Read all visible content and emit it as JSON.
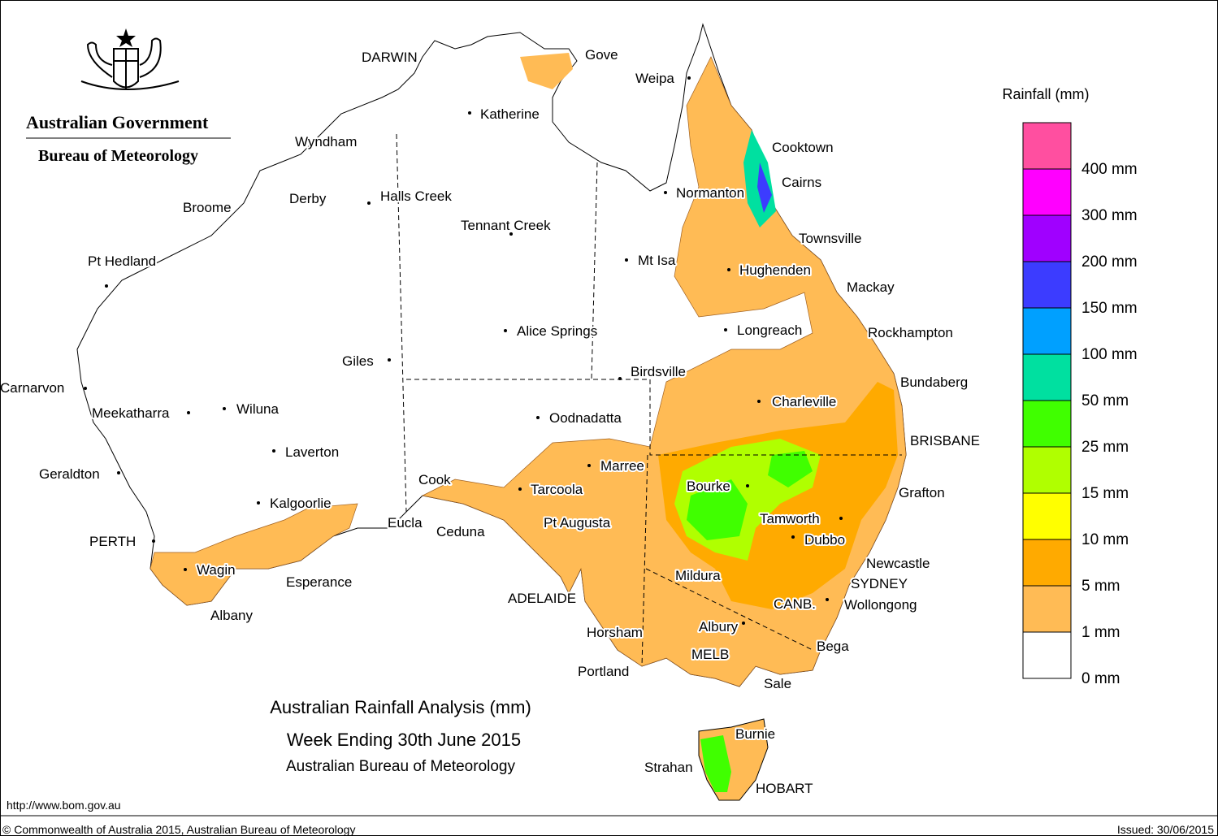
{
  "header": {
    "government": "Australian Government",
    "bureau": "Bureau of Meteorology"
  },
  "title": {
    "line1": "Australian Rainfall Analysis (mm)",
    "line2": "Week Ending 30th June 2015",
    "line3": "Australian Bureau of Meteorology"
  },
  "legend": {
    "title": "Rainfall (mm)",
    "items": [
      {
        "label": "400 mm",
        "color": "#ff4fa0"
      },
      {
        "label": "300 mm",
        "color": "#ff00ff"
      },
      {
        "label": "200 mm",
        "color": "#a000ff"
      },
      {
        "label": "150 mm",
        "color": "#3c3cff"
      },
      {
        "label": "100 mm",
        "color": "#00a0ff"
      },
      {
        "label": "50 mm",
        "color": "#00e0a0"
      },
      {
        "label": "25 mm",
        "color": "#40ff00"
      },
      {
        "label": "15 mm",
        "color": "#b0ff00"
      },
      {
        "label": "10 mm",
        "color": "#ffff00"
      },
      {
        "label": "5 mm",
        "color": "#ffaa00"
      },
      {
        "label": "1 mm",
        "color": "#ffbb55"
      },
      {
        "label": "0 mm",
        "color": "#ffffff"
      }
    ]
  },
  "places": [
    "DARWIN",
    "Gove",
    "Weipa",
    "Katherine",
    "Wyndham",
    "Cooktown",
    "Cairns",
    "Normanton",
    "Derby",
    "Halls Creek",
    "Broome",
    "Tennant Creek",
    "Townsville",
    "Pt Hedland",
    "Mt Isa",
    "Hughenden",
    "Mackay",
    "Alice Springs",
    "Longreach",
    "Rockhampton",
    "Giles",
    "Birdsville",
    "Bundaberg",
    "Carnarvon",
    "Charleville",
    "Meekatharra",
    "Wiluna",
    "Oodnadatta",
    "BRISBANE",
    "Laverton",
    "Marree",
    "Geraldton",
    "Cook",
    "Bourke",
    "Tarcoola",
    "Grafton",
    "Kalgoorlie",
    "Tamworth",
    "Pt Augusta",
    "Eucla",
    "Ceduna",
    "Dubbo",
    "PERTH",
    "Newcastle",
    "Wagin",
    "Mildura",
    "Esperance",
    "SYDNEY",
    "ADELAIDE",
    "CANB.",
    "Wollongong",
    "Albany",
    "Albury",
    "Horsham",
    "Bega",
    "MELB",
    "Portland",
    "Sale",
    "Burnie",
    "Strahan",
    "HOBART"
  ],
  "footer": {
    "url": "http://www.bom.gov.au",
    "copyright": "© Commonwealth of Australia 2015, Australian Bureau of Meteorology",
    "issued": "Issued: 30/06/2015"
  }
}
